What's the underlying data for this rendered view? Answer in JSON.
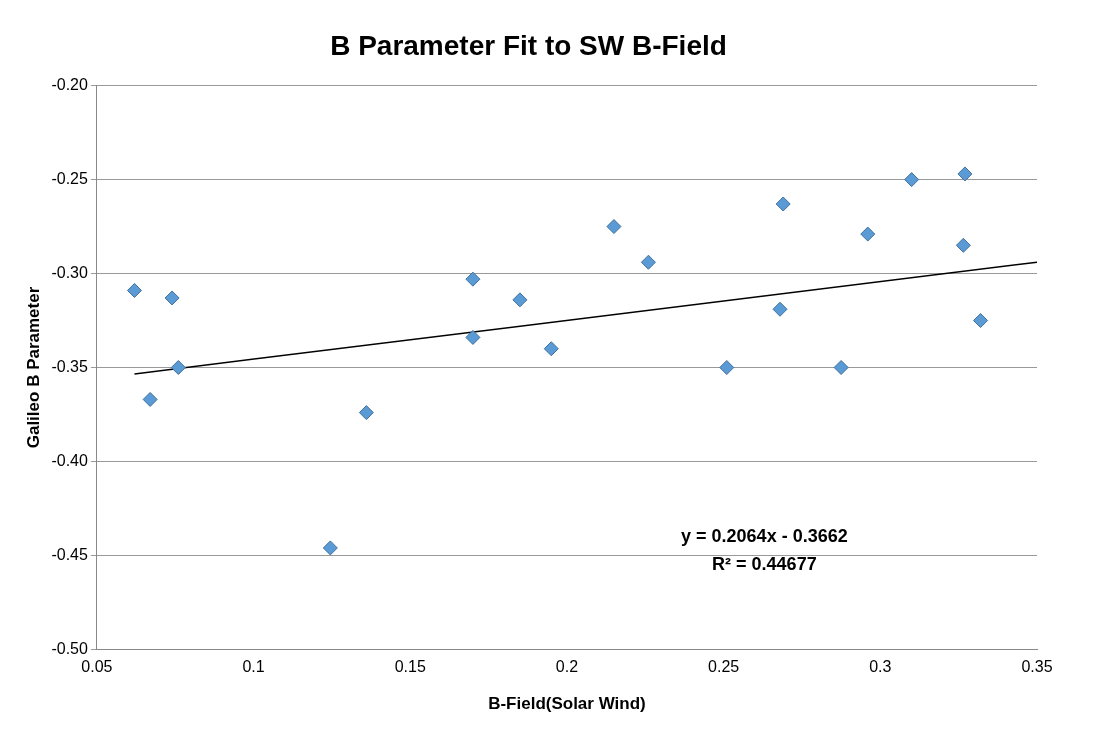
{
  "chart_data": {
    "type": "scatter",
    "title": "B Parameter Fit to SW B-Field",
    "xlabel": "B-Field(Solar Wind)",
    "ylabel": "Galileo B Parameter",
    "xlim": [
      0.05,
      0.35
    ],
    "xticks": [
      0.05,
      0.1,
      0.15,
      0.2,
      0.25,
      0.3,
      0.35
    ],
    "ylim": [
      -0.5,
      -0.2
    ],
    "yticks": [
      {
        "value": -0.5,
        "label": "-0.50"
      },
      {
        "value": -0.45,
        "label": "-0.45"
      },
      {
        "value": -0.4,
        "label": "-0.40"
      },
      {
        "value": -0.35,
        "label": "-0.35"
      },
      {
        "value": -0.3,
        "label": "-0.30"
      },
      {
        "value": -0.25,
        "label": "-0.25"
      },
      {
        "value": -0.2,
        "label": "-0.20"
      }
    ],
    "grid": "y",
    "legend": false,
    "marker": "diamond",
    "annotations": [
      "y = 0.2064x - 0.3662",
      "R² = 0.44677"
    ],
    "series": [
      {
        "color": "#5b9bd5",
        "x": [
          0.062,
          0.074,
          0.076,
          0.067,
          0.1245,
          0.136,
          0.17,
          0.17,
          0.185,
          0.195,
          0.215,
          0.226,
          0.251,
          0.269,
          0.268,
          0.2875,
          0.296,
          0.31,
          0.327,
          0.3265,
          0.332
        ],
        "values": [
          -0.309,
          -0.313,
          -0.35,
          -0.367,
          -0.446,
          -0.374,
          -0.303,
          -0.334,
          -0.314,
          -0.34,
          -0.275,
          -0.294,
          -0.35,
          -0.263,
          -0.319,
          -0.35,
          -0.279,
          -0.25,
          -0.247,
          -0.285,
          -0.325
        ]
      },
      {
        "type": "line",
        "color": "#000000",
        "marker": "none",
        "x": [
          0.062,
          0.35
        ],
        "values": [
          -0.3534,
          -0.294
        ]
      }
    ]
  }
}
